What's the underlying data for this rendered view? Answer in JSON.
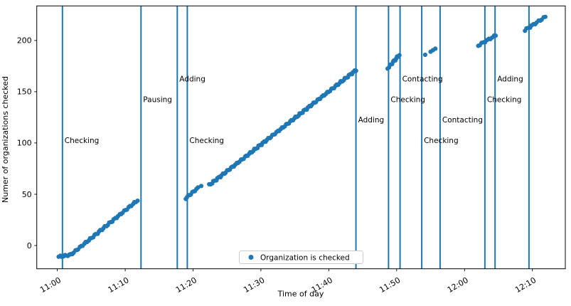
{
  "colors": {
    "accent": "#1f77b4",
    "text": "#000000",
    "frame": "#000000",
    "legend_border": "#cccccc",
    "background": "#ffffff"
  },
  "chart_data": {
    "type": "scatter",
    "title": "",
    "xlabel": "Time of day",
    "ylabel": "Numer of organizations checked",
    "grid": false,
    "legend": {
      "position": "lower center",
      "entries": [
        {
          "label": "Organization is checked",
          "marker": "circle-icon",
          "color": "#1f77b4"
        }
      ]
    },
    "x_axis": {
      "reference": "minutes after 11:00",
      "tick_minutes": [
        0,
        10,
        20,
        30,
        40,
        50,
        60,
        70
      ],
      "tick_labels": [
        "11:00",
        "11:10",
        "11:20",
        "11:30",
        "11:40",
        "11:50",
        "12:00",
        "12:10"
      ],
      "rotation_deg": 30,
      "xlim_minutes": [
        -3.03,
        74.85
      ]
    },
    "y_axis": {
      "ticks": [
        0,
        50,
        100,
        150,
        200
      ],
      "ylim": [
        -22.7,
        233.7
      ]
    },
    "series": [
      {
        "name": "Organization is checked",
        "marker": "circle",
        "color": "#1f77b4",
        "runs": [
          {
            "start_time": "11:00",
            "end_time": "11:02",
            "start_min": 0.2,
            "end_min": 2.0,
            "start_value": -11,
            "end_value": -9,
            "n": 9
          },
          {
            "start_time": "11:02",
            "end_time": "11:12",
            "start_min": 2.0,
            "end_min": 11.8,
            "start_value": -9,
            "end_value": 44,
            "n": 46
          },
          {
            "start_time": "11:19",
            "end_time": "11:21",
            "start_min": 18.9,
            "end_min": 20.7,
            "start_value": 46,
            "end_value": 56,
            "n": 10
          },
          {
            "start_time": "11:21",
            "end_time": "11:21",
            "start_min": 21.2,
            "end_min": 21.2,
            "start_value": 58,
            "end_value": 58,
            "n": 1
          },
          {
            "start_time": "11:22",
            "end_time": "11:44",
            "start_min": 22.4,
            "end_min": 44.0,
            "start_value": 59,
            "end_value": 171,
            "n": 108
          },
          {
            "start_time": "11:49",
            "end_time": "11:50",
            "start_min": 48.7,
            "end_min": 50.4,
            "start_value": 173,
            "end_value": 186,
            "n": 12
          },
          {
            "start_time": "11:54",
            "end_time": "11:54",
            "start_min": 54.2,
            "end_min": 54.2,
            "start_value": 186,
            "end_value": 186,
            "n": 1
          },
          {
            "start_time": "11:55",
            "end_time": "11:56",
            "start_min": 55.0,
            "end_min": 55.7,
            "start_value": 189,
            "end_value": 192,
            "n": 3
          },
          {
            "start_time": "12:02",
            "end_time": "12:05",
            "start_min": 62.0,
            "end_min": 64.6,
            "start_value": 195,
            "end_value": 205,
            "n": 11
          },
          {
            "start_time": "12:09",
            "end_time": "12:12",
            "start_min": 68.9,
            "end_min": 71.9,
            "start_value": 210,
            "end_value": 223,
            "n": 13
          }
        ]
      }
    ],
    "event_lines": [
      {
        "min": 0.75,
        "time": "11:01",
        "label": "Checking",
        "label_value": 100
      },
      {
        "min": 12.33,
        "time": "11:12",
        "label": "Pausing",
        "label_value": 140
      },
      {
        "min": 17.67,
        "time": "11:18",
        "label": "Adding",
        "label_value": 160
      },
      {
        "min": 19.15,
        "time": "11:19",
        "label": "Checking",
        "label_value": 100
      },
      {
        "min": 44.0,
        "time": "11:44",
        "label": "Adding",
        "label_value": 120
      },
      {
        "min": 48.8,
        "time": "11:49",
        "label": "Checking",
        "label_value": 140
      },
      {
        "min": 50.5,
        "time": "11:50",
        "label": "Contacting",
        "label_value": 160
      },
      {
        "min": 53.7,
        "time": "11:54",
        "label": "Checking",
        "label_value": 100
      },
      {
        "min": 56.4,
        "time": "11:56",
        "label": "Contacting",
        "label_value": 120
      },
      {
        "min": 63.0,
        "time": "12:03",
        "label": "Checking",
        "label_value": 140
      },
      {
        "min": 64.5,
        "time": "12:04",
        "label": "Adding",
        "label_value": 160
      },
      {
        "min": 69.5,
        "time": "12:10",
        "label": "",
        "label_value": null
      }
    ]
  }
}
